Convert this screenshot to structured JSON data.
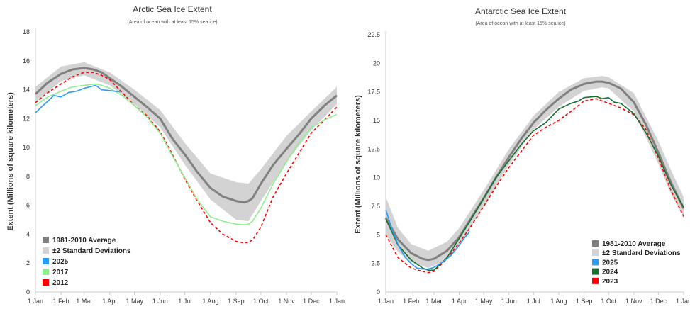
{
  "chart_data": [
    {
      "type": "line",
      "title": "Arctic Sea Ice Extent",
      "subtitle": "(Area of ocean with at least 15% sea ice)",
      "ylabel": "Extent (Millions of square kilometers)",
      "xlabel": "",
      "ylim": [
        0,
        18
      ],
      "yticks": [
        "0",
        "2",
        "4",
        "6",
        "8",
        "10",
        "12",
        "14",
        "16",
        "18"
      ],
      "yticks_values": [
        0,
        2,
        4,
        6,
        8,
        10,
        12,
        14,
        16,
        18
      ],
      "xticks": [
        "1 Jan",
        "1 Feb",
        "1 Mar",
        "1 Apr",
        "1 May",
        "1 Jun",
        "1 Jul",
        "1 Aug",
        "1 Sep",
        "1 Oct",
        "1 Nov",
        "1 Dec",
        "1 Jan"
      ],
      "xticks_values": [
        0,
        31,
        59,
        90,
        120,
        151,
        181,
        212,
        243,
        273,
        304,
        334,
        365
      ],
      "grid": false,
      "legend_position": "bottom-left",
      "series": [
        {
          "name": "1981-2010 Average",
          "color": "#808080",
          "style": "solid",
          "x": [
            0,
            15,
            31,
            45,
            59,
            70,
            80,
            90,
            105,
            120,
            135,
            151,
            166,
            181,
            196,
            212,
            227,
            243,
            253,
            258,
            263,
            273,
            288,
            304,
            319,
            334,
            350,
            365
          ],
          "y": [
            13.7,
            14.5,
            15.1,
            15.4,
            15.5,
            15.4,
            15.2,
            14.8,
            14.2,
            13.5,
            12.8,
            12.0,
            10.6,
            9.5,
            8.3,
            7.2,
            6.6,
            6.3,
            6.2,
            6.3,
            6.5,
            7.5,
            8.8,
            9.9,
            10.9,
            12.0,
            12.9,
            13.6
          ]
        },
        {
          "name": "±2 Standard Deviations",
          "color": "#d3d3d3",
          "style": "band",
          "x": [
            0,
            31,
            59,
            90,
            120,
            151,
            181,
            212,
            243,
            258,
            273,
            304,
            334,
            365
          ],
          "upper": [
            14.2,
            15.6,
            15.9,
            15.2,
            14.0,
            12.6,
            10.3,
            8.2,
            7.6,
            7.5,
            8.5,
            10.8,
            12.5,
            14.2
          ],
          "lower": [
            13.1,
            14.6,
            15.0,
            14.3,
            13.0,
            11.4,
            8.8,
            6.4,
            5.0,
            4.9,
            6.3,
            9.0,
            11.2,
            13.0
          ]
        },
        {
          "name": "2025",
          "color": "#2b9af3",
          "style": "solid",
          "x": [
            0,
            7,
            15,
            22,
            31,
            40,
            50,
            59,
            66,
            73,
            80,
            88,
            95,
            103
          ],
          "y": [
            12.4,
            12.8,
            13.2,
            13.6,
            13.5,
            13.8,
            13.9,
            14.1,
            14.2,
            14.3,
            14.0,
            13.95,
            13.9,
            13.85
          ]
        },
        {
          "name": "2017",
          "color": "#90ee90",
          "style": "solid",
          "x": [
            0,
            15,
            31,
            45,
            59,
            73,
            80,
            90,
            105,
            120,
            135,
            151,
            166,
            181,
            196,
            212,
            227,
            243,
            253,
            258,
            263,
            273,
            288,
            304,
            319,
            334,
            350,
            365
          ],
          "y": [
            12.9,
            13.5,
            13.9,
            14.2,
            14.3,
            14.4,
            14.3,
            14.1,
            13.6,
            12.9,
            12.1,
            11.0,
            9.4,
            7.9,
            6.4,
            5.2,
            4.9,
            4.7,
            4.65,
            4.7,
            4.9,
            5.8,
            7.5,
            9.0,
            10.3,
            11.4,
            11.9,
            12.3
          ]
        },
        {
          "name": "2012",
          "color": "#ff0000",
          "style": "dashed",
          "x": [
            0,
            15,
            31,
            45,
            59,
            70,
            80,
            90,
            105,
            120,
            135,
            151,
            166,
            181,
            196,
            212,
            227,
            243,
            253,
            258,
            263,
            273,
            288,
            304,
            319,
            334,
            350,
            365
          ],
          "y": [
            13.1,
            13.8,
            14.4,
            14.9,
            15.2,
            15.2,
            15.0,
            14.7,
            13.8,
            12.9,
            12.2,
            11.1,
            9.5,
            7.8,
            6.3,
            4.8,
            4.0,
            3.5,
            3.4,
            3.45,
            3.6,
            4.5,
            6.6,
            8.2,
            9.6,
            11.0,
            11.9,
            12.8
          ]
        }
      ]
    },
    {
      "type": "line",
      "title": "Antarctic Sea Ice Extent",
      "subtitle": "(Area of ocean with at least 15% sea ice)",
      "ylabel": "Extent (Millions of square kilometers)",
      "xlabel": "",
      "ylim": [
        0,
        22.5
      ],
      "yticks": [
        "0",
        "2.5",
        "5",
        "7.5",
        "10",
        "12.5",
        "15",
        "17.5",
        "20",
        "22.5"
      ],
      "yticks_values": [
        0,
        2.5,
        5,
        7.5,
        10,
        12.5,
        15,
        17.5,
        20,
        22.5
      ],
      "xticks": [
        "1 Jan",
        "1 Feb",
        "1 Mar",
        "1 Apr",
        "1 May",
        "1 Jun",
        "1 Jul",
        "1 Aug",
        "1 Sep",
        "1 Oct",
        "1 Nov",
        "1 Dec",
        "1 Jan"
      ],
      "xticks_values": [
        0,
        31,
        59,
        90,
        120,
        151,
        181,
        212,
        243,
        273,
        304,
        334,
        365
      ],
      "grid": false,
      "legend_position": "bottom-right",
      "series": [
        {
          "name": "1981-2010 Average",
          "color": "#808080",
          "style": "solid",
          "x": [
            0,
            15,
            31,
            45,
            52,
            59,
            75,
            90,
            105,
            120,
            135,
            151,
            166,
            181,
            196,
            212,
            227,
            243,
            258,
            265,
            273,
            288,
            304,
            319,
            334,
            350,
            365
          ],
          "y": [
            6.5,
            4.6,
            3.4,
            2.9,
            2.8,
            2.9,
            3.6,
            4.8,
            6.5,
            8.2,
            10.0,
            11.8,
            13.4,
            14.8,
            15.9,
            16.9,
            17.7,
            18.2,
            18.4,
            18.4,
            18.3,
            17.8,
            16.6,
            14.6,
            12.2,
            9.5,
            7.3
          ]
        },
        {
          "name": "±2 Standard Deviations",
          "color": "#d3d3d3",
          "style": "band",
          "x": [
            0,
            15,
            31,
            52,
            75,
            90,
            120,
            151,
            181,
            212,
            243,
            265,
            273,
            304,
            334,
            350,
            365
          ],
          "upper": [
            8.3,
            5.6,
            4.2,
            3.6,
            4.4,
            5.6,
            8.9,
            12.5,
            15.4,
            17.5,
            18.7,
            18.9,
            18.8,
            17.4,
            13.2,
            10.6,
            8.3
          ],
          "lower": [
            5.0,
            3.5,
            2.6,
            2.1,
            2.8,
            4.0,
            7.5,
            11.1,
            14.2,
            16.2,
            17.6,
            17.9,
            17.8,
            15.8,
            11.2,
            8.5,
            6.6
          ]
        },
        {
          "name": "2025",
          "color": "#2b9af3",
          "style": "solid",
          "x": [
            0,
            8,
            16,
            24,
            31,
            38,
            45,
            52,
            59,
            66,
            73,
            80,
            88,
            95,
            103
          ],
          "y": [
            7.2,
            5.4,
            4.0,
            3.0,
            2.5,
            2.1,
            2.0,
            2.0,
            2.15,
            2.45,
            2.8,
            3.2,
            3.9,
            4.6,
            5.3
          ]
        },
        {
          "name": "2024",
          "color": "#1a6e30",
          "style": "solid",
          "x": [
            0,
            15,
            31,
            45,
            52,
            59,
            75,
            90,
            105,
            120,
            135,
            151,
            166,
            181,
            196,
            212,
            227,
            236,
            243,
            258,
            265,
            273,
            280,
            288,
            304,
            319,
            334,
            350,
            365
          ],
          "y": [
            6.4,
            4.1,
            2.8,
            2.1,
            1.9,
            1.9,
            3.0,
            4.7,
            6.4,
            8.2,
            10.0,
            11.5,
            12.9,
            14.1,
            14.8,
            16.0,
            16.5,
            16.7,
            17.0,
            17.1,
            16.9,
            17.0,
            16.6,
            16.5,
            15.6,
            13.9,
            11.9,
            9.3,
            7.4
          ]
        },
        {
          "name": "2023",
          "color": "#ff0000",
          "style": "dashed",
          "x": [
            0,
            15,
            31,
            45,
            52,
            59,
            75,
            90,
            105,
            120,
            135,
            151,
            166,
            181,
            196,
            212,
            227,
            243,
            258,
            273,
            288,
            304,
            319,
            334,
            350,
            365
          ],
          "y": [
            5.0,
            3.0,
            2.1,
            1.8,
            1.7,
            1.8,
            2.9,
            4.3,
            5.8,
            7.5,
            9.2,
            10.9,
            12.3,
            13.7,
            14.4,
            15.0,
            15.8,
            16.7,
            16.9,
            16.5,
            16.1,
            15.5,
            14.2,
            11.7,
            8.8,
            6.6
          ]
        }
      ]
    }
  ]
}
